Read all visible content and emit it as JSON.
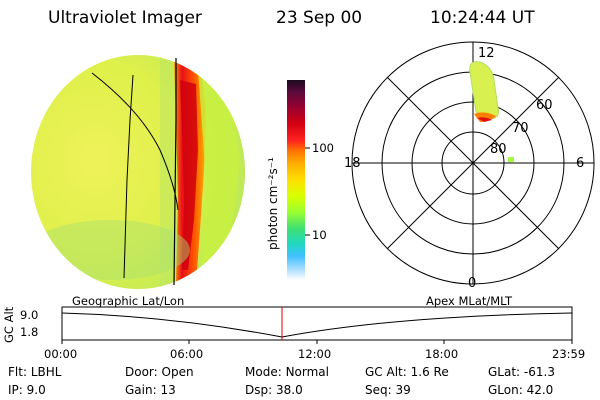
{
  "header": {
    "instrument": "Ultraviolet Imager",
    "date": "23 Sep 00",
    "time": "10:24:44 UT"
  },
  "colorbar": {
    "unit_label": "photon cm⁻²s⁻¹",
    "ticks": [
      "100",
      "10"
    ],
    "colors": [
      "#1a0a1e",
      "#5a0a3c",
      "#9b0030",
      "#d40010",
      "#ff2020",
      "#ff7a00",
      "#ffb000",
      "#ffe000",
      "#d8ff00",
      "#9cff30",
      "#40e070",
      "#20d8c0",
      "#40c0ff",
      "#b0e0ff",
      "#ffffff"
    ]
  },
  "polar": {
    "label_top": "12",
    "label_left": "18",
    "label_right": "6",
    "label_bottom": "0",
    "lat_labels": [
      "60",
      "70",
      "80"
    ]
  },
  "orbit": {
    "ylabel": "GC Alt",
    "y_ticks": [
      "9.0",
      "1.8"
    ],
    "left_title": "Geographic Lat/Lon",
    "right_title": "Apex MLat/MLT",
    "x_ticks": [
      "00:00",
      "06:00",
      "12:00",
      "18:00",
      "23:59"
    ],
    "marker_time_fraction": 0.434
  },
  "info": {
    "row1": [
      {
        "key": "Flt:",
        "value": "LBHL"
      },
      {
        "key": "Door:",
        "value": "Open"
      },
      {
        "key": "Mode:",
        "value": "Normal"
      },
      {
        "key": "GC Alt:",
        "value": "1.6 Re"
      },
      {
        "key": "GLat:",
        "value": "-61.3"
      }
    ],
    "row2": [
      {
        "key": "IP:",
        "value": "9.0"
      },
      {
        "key": "Gain:",
        "value": "13"
      },
      {
        "key": "Dsp:",
        "value": "38.0"
      },
      {
        "key": "Seq:",
        "value": "39"
      },
      {
        "key": "GLon:",
        "value": "42.0"
      }
    ]
  }
}
